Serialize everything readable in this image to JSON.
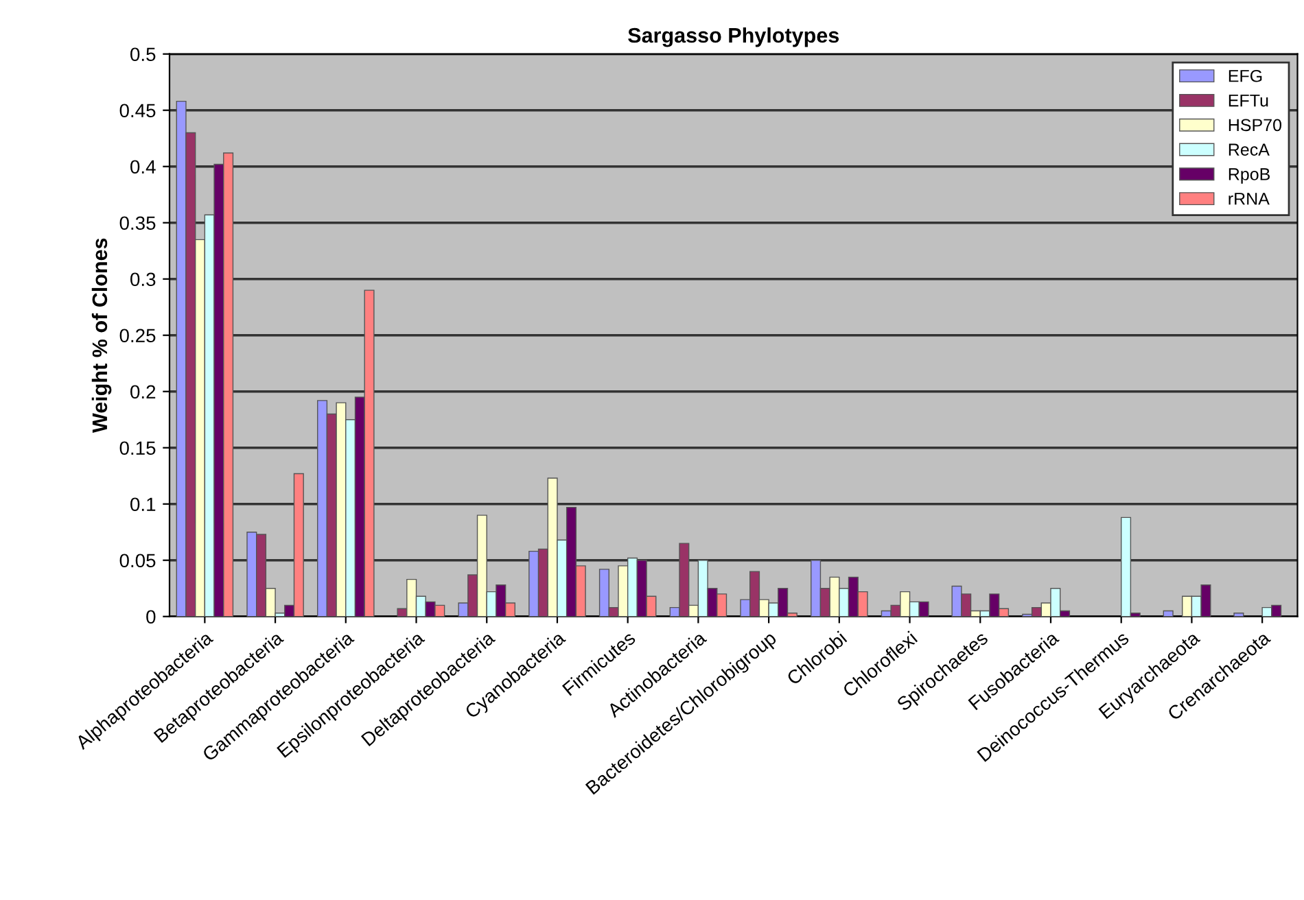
{
  "chart_data": {
    "type": "bar",
    "title": "Sargasso Phylotypes",
    "ylabel": "Weight % of Clones",
    "categories": [
      "Alphaproteobacteria",
      "Betaproteobacteria",
      "Gammaproteobacteria",
      "Epsilonproteobacteria",
      "Deltaproteobacteria",
      "Cyanobacteria",
      "Firmicutes",
      "Actinobacteria",
      "Bacteroidetes/Chlorobigroup",
      "Chlorobi",
      "Chloroflexi",
      "Spirochaetes",
      "Fusobacteria",
      "Deinococcus-Thermus",
      "Euryarchaeota",
      "Crenarchaeota"
    ],
    "series": [
      {
        "name": "EFG",
        "color": "#9999ff",
        "values": [
          0.458,
          0.075,
          0.192,
          null,
          0.012,
          0.058,
          0.042,
          0.008,
          0.015,
          0.05,
          0.005,
          0.027,
          0.002,
          null,
          0.005,
          0.003
        ]
      },
      {
        "name": "EFTu",
        "color": "#993366",
        "values": [
          0.43,
          0.073,
          0.18,
          0.007,
          0.037,
          0.06,
          0.008,
          0.065,
          0.04,
          0.025,
          0.01,
          0.02,
          0.008,
          null,
          null,
          null
        ]
      },
      {
        "name": "HSP70",
        "color": "#ffffcc",
        "values": [
          0.335,
          0.025,
          0.19,
          0.033,
          0.09,
          0.123,
          0.045,
          0.01,
          0.015,
          0.035,
          0.022,
          0.005,
          0.012,
          null,
          0.018,
          null
        ]
      },
      {
        "name": "RecA",
        "color": "#ccffff",
        "values": [
          0.357,
          0.003,
          0.175,
          0.018,
          0.022,
          0.068,
          0.052,
          0.05,
          0.012,
          0.025,
          0.013,
          0.005,
          0.025,
          0.088,
          0.018,
          0.008
        ]
      },
      {
        "name": "RpoB",
        "color": "#660066",
        "values": [
          0.402,
          0.01,
          0.195,
          0.013,
          0.028,
          0.097,
          0.05,
          0.025,
          0.025,
          0.035,
          0.013,
          0.02,
          0.005,
          0.003,
          0.028,
          0.01
        ]
      },
      {
        "name": "rRNA",
        "color": "#ff8080",
        "values": [
          0.412,
          0.127,
          0.29,
          0.01,
          0.012,
          0.045,
          0.018,
          0.02,
          0.003,
          0.022,
          null,
          0.007,
          null,
          null,
          null,
          null
        ]
      }
    ],
    "ylim": [
      0,
      0.5
    ],
    "yticks": [
      {
        "value": 0,
        "label": "0"
      },
      0.05,
      0.1,
      0.15,
      0.2,
      0.25,
      0.3,
      0.35,
      0.4,
      0.45,
      0.5
    ],
    "grid": "y",
    "legend": "top right"
  }
}
